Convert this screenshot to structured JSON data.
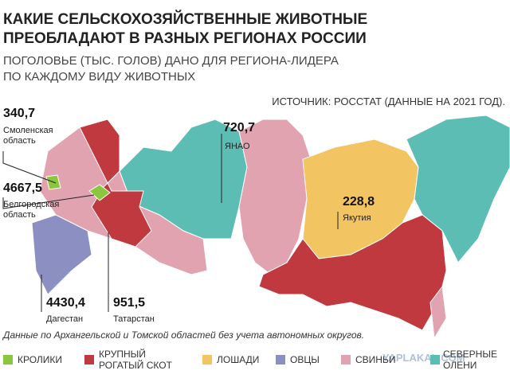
{
  "header": {
    "title": [
      "КАКИЕ СЕЛЬСКОХОЗЯЙСТВЕННЫЕ ЖИВОТНЫЕ",
      "ПРЕОБЛАДАЮТ В РАЗНЫХ РЕГИОНАХ РОССИИ"
    ],
    "subtitle": [
      "ПОГОЛОВЬЕ (ТЫС. ГОЛОВ) ДАНО ДЛЯ РЕГИОНА-ЛИДЕРА",
      "ПО КАЖДОМУ ВИДУ ЖИВОТНЫХ"
    ]
  },
  "source": "ИСТОЧНИК: РОССТАТ (ДАННЫЕ НА 2021 ГОД).",
  "callouts": [
    {
      "value": "340,7",
      "label": [
        "Смоленская",
        "область"
      ]
    },
    {
      "value": "720,7",
      "label": [
        "ЯНАО"
      ]
    },
    {
      "value": "4667,5",
      "label": [
        "Белгородская",
        "область"
      ]
    },
    {
      "value": "228,8",
      "label": [
        "Якутия"
      ]
    },
    {
      "value": "4430,4",
      "label": [
        "Дагестан"
      ]
    },
    {
      "value": "951,5",
      "label": [
        "Татарстан"
      ]
    }
  ],
  "note": "Данные по Архангельской и Томской областей без учета автономных округов.",
  "legend": [
    {
      "label": [
        "КРОЛИКИ"
      ],
      "color": "#8cc63e"
    },
    {
      "label": [
        "КРУПНЫЙ",
        "РОГАТЫЙ СКОТ"
      ],
      "color": "#c0393f"
    },
    {
      "label": [
        "ЛОШАДИ"
      ],
      "color": "#f2c462"
    },
    {
      "label": [
        "ОВЦЫ"
      ],
      "color": "#8c8fc2"
    },
    {
      "label": [
        "СВИНЬИ"
      ],
      "color": "#e1a3b0"
    },
    {
      "label": [
        "СЕВЕРНЫЕ",
        "ОЛЕНИ"
      ],
      "color": "#5cbdb5"
    }
  ],
  "watermark": "YAPLAKAL.COM"
}
